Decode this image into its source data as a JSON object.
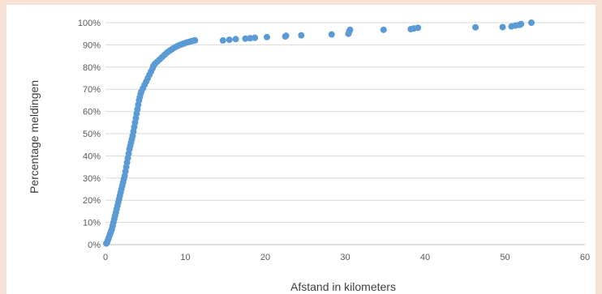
{
  "chart_data": {
    "type": "scatter",
    "title": "",
    "xlabel": "Afstand in kilometers",
    "ylabel": "Percentage meldingen",
    "xlim": [
      0,
      60
    ],
    "ylim": [
      0,
      100
    ],
    "x_ticks": [
      "0",
      "10",
      "20",
      "30",
      "40",
      "50",
      "60"
    ],
    "y_ticks": [
      "0%",
      "10%",
      "20%",
      "30%",
      "40%",
      "50%",
      "60%",
      "70%",
      "80%",
      "90%",
      "100%"
    ],
    "grid": "horizontal",
    "legend": "none",
    "series": [
      {
        "color": "#5b9bd5",
        "points": [
          [
            0.1,
            0.5
          ],
          [
            0.2,
            1.0
          ],
          [
            0.3,
            2.0
          ],
          [
            0.4,
            3.0
          ],
          [
            0.5,
            4.0
          ],
          [
            0.6,
            5.0
          ],
          [
            0.7,
            6.0
          ],
          [
            0.8,
            7.0
          ],
          [
            0.9,
            8.5
          ],
          [
            1.0,
            10.0
          ],
          [
            1.1,
            11.5
          ],
          [
            1.2,
            13.0
          ],
          [
            1.3,
            14.5
          ],
          [
            1.4,
            16.0
          ],
          [
            1.5,
            17.5
          ],
          [
            1.6,
            19.0
          ],
          [
            1.7,
            20.5
          ],
          [
            1.8,
            22.0
          ],
          [
            1.9,
            23.5
          ],
          [
            2.0,
            25.0
          ],
          [
            2.1,
            26.5
          ],
          [
            2.2,
            28.0
          ],
          [
            2.3,
            29.5
          ],
          [
            2.4,
            31.0
          ],
          [
            2.5,
            33.0
          ],
          [
            2.6,
            35.0
          ],
          [
            2.7,
            37.0
          ],
          [
            2.8,
            39.0
          ],
          [
            2.9,
            41.0
          ],
          [
            3.0,
            43.0
          ],
          [
            3.1,
            44.5
          ],
          [
            3.2,
            46.0
          ],
          [
            3.3,
            47.5
          ],
          [
            3.4,
            49.0
          ],
          [
            3.5,
            51.0
          ],
          [
            3.6,
            53.0
          ],
          [
            3.7,
            55.0
          ],
          [
            3.8,
            57.0
          ],
          [
            3.9,
            59.0
          ],
          [
            4.0,
            61.0
          ],
          [
            4.1,
            63.0
          ],
          [
            4.2,
            65.0
          ],
          [
            4.3,
            66.5
          ],
          [
            4.4,
            68.0
          ],
          [
            4.5,
            69.0
          ],
          [
            4.7,
            70.5
          ],
          [
            4.9,
            72.0
          ],
          [
            5.1,
            73.5
          ],
          [
            5.3,
            75.0
          ],
          [
            5.5,
            76.5
          ],
          [
            5.7,
            78.0
          ],
          [
            5.9,
            79.5
          ],
          [
            6.0,
            80.5
          ],
          [
            6.2,
            81.5
          ],
          [
            6.5,
            82.5
          ],
          [
            6.8,
            83.5
          ],
          [
            7.1,
            84.5
          ],
          [
            7.4,
            85.5
          ],
          [
            7.7,
            86.5
          ],
          [
            8.0,
            87.3
          ],
          [
            8.3,
            88.0
          ],
          [
            8.6,
            88.7
          ],
          [
            8.9,
            89.3
          ],
          [
            9.2,
            89.8
          ],
          [
            9.5,
            90.2
          ],
          [
            9.8,
            90.6
          ],
          [
            10.1,
            91.0
          ],
          [
            10.4,
            91.3
          ],
          [
            10.7,
            91.6
          ],
          [
            11.0,
            91.9
          ],
          [
            11.2,
            92.0
          ],
          [
            14.7,
            92.0
          ],
          [
            15.5,
            92.3
          ],
          [
            16.3,
            92.6
          ],
          [
            17.5,
            92.8
          ],
          [
            18.1,
            93.0
          ],
          [
            18.7,
            93.2
          ],
          [
            20.2,
            93.5
          ],
          [
            22.5,
            93.8
          ],
          [
            22.6,
            94.1
          ],
          [
            24.5,
            94.3
          ],
          [
            28.3,
            94.7
          ],
          [
            30.4,
            95.0
          ],
          [
            30.5,
            96.0
          ],
          [
            30.6,
            96.8
          ],
          [
            34.8,
            96.8
          ],
          [
            38.2,
            97.1
          ],
          [
            38.6,
            97.4
          ],
          [
            39.1,
            97.7
          ],
          [
            46.3,
            97.9
          ],
          [
            49.7,
            98.0
          ],
          [
            50.8,
            98.3
          ],
          [
            51.3,
            98.7
          ],
          [
            51.8,
            99.0
          ],
          [
            52.0,
            99.4
          ],
          [
            53.3,
            100.0
          ]
        ]
      }
    ]
  }
}
